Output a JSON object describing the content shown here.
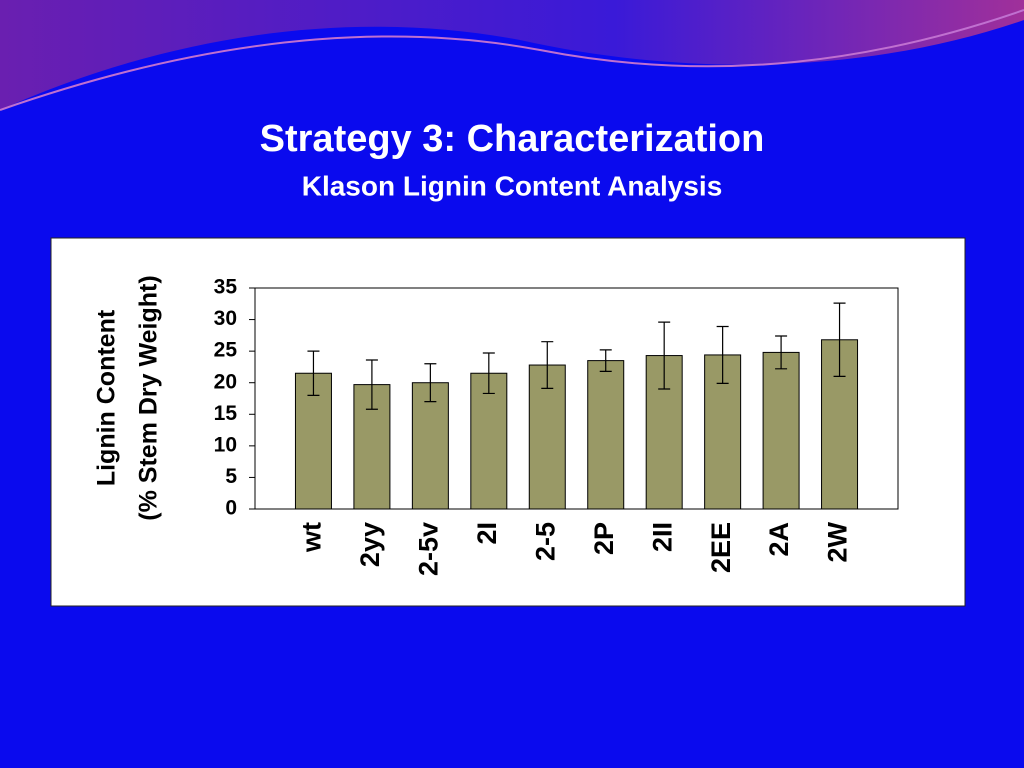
{
  "chart_data": {
    "type": "bar",
    "title": "Strategy 3:  Characterization",
    "subtitle": "Klason Lignin Content Analysis",
    "y_label": [
      "Lignin Content",
      "(% Stem Dry Weight)"
    ],
    "categories": [
      "wt",
      "2yy",
      "2-5v",
      "2I",
      "2-5",
      "2P",
      "2II",
      "2EE",
      "2A",
      "2W"
    ],
    "values": [
      21.5,
      19.7,
      20,
      21.5,
      22.8,
      23.5,
      24.3,
      24.4,
      24.8,
      26.8
    ],
    "errors": [
      3.5,
      3.9,
      3,
      3.2,
      3.7,
      1.7,
      5.3,
      4.5,
      2.6,
      5.8
    ],
    "color": "#999966",
    "ylim": [
      0,
      35
    ],
    "yticks": [
      0,
      5,
      10,
      15,
      20,
      25,
      30,
      35
    ]
  }
}
